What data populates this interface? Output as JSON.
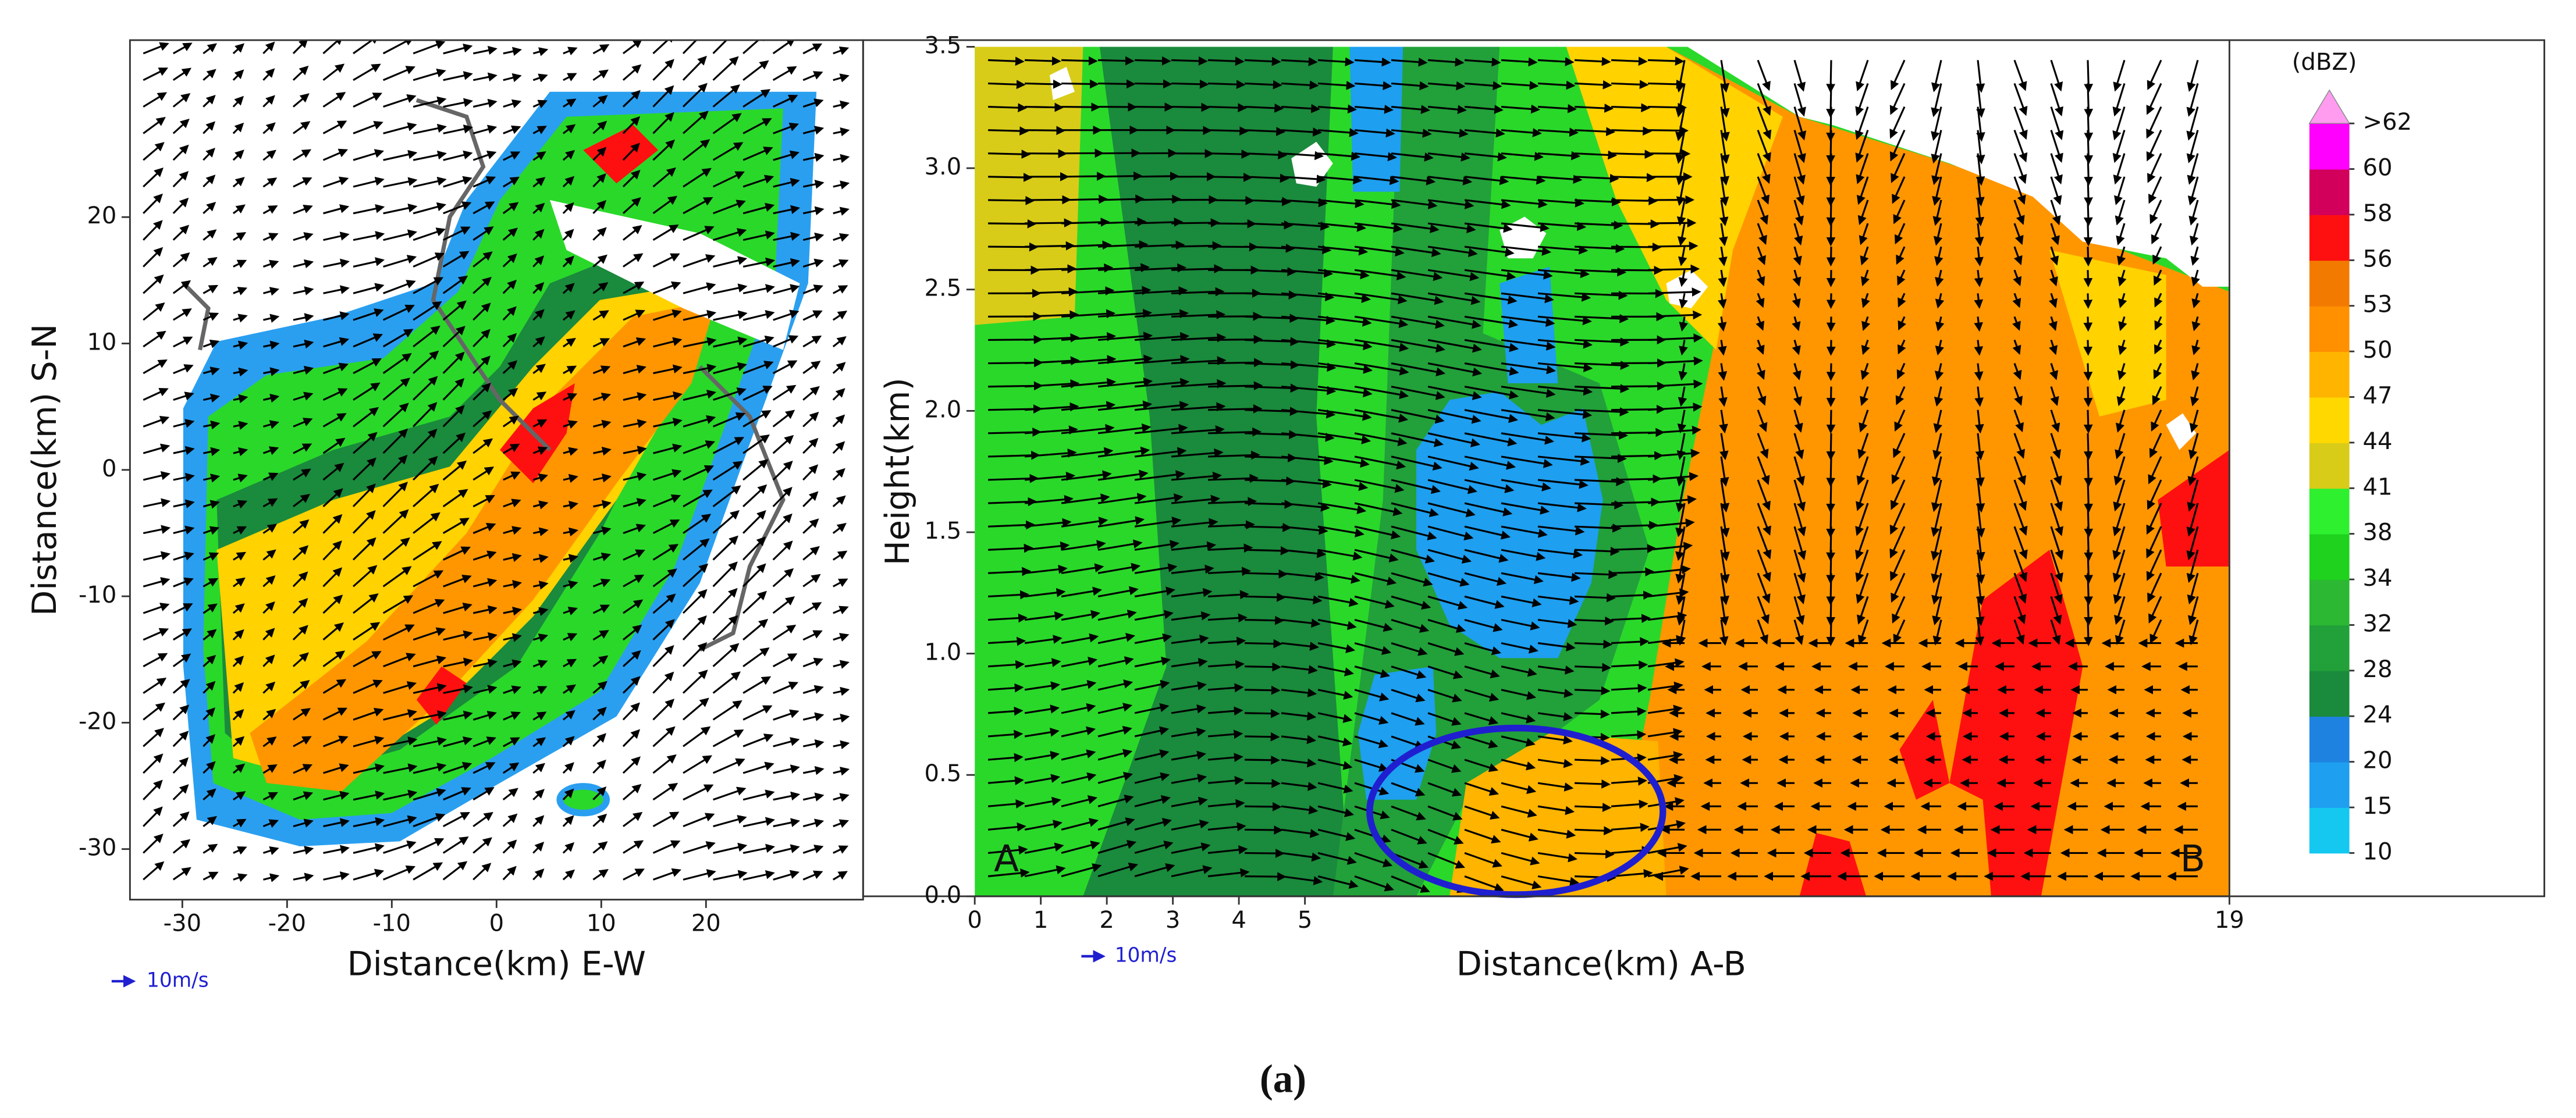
{
  "chart_data": [
    {
      "type": "contour",
      "xlabel": "Distance(km) E-W",
      "ylabel": "Distance(km) S-N",
      "xlim": [
        -35,
        35
      ],
      "ylim": [
        -34,
        34
      ],
      "xticks": [
        -30,
        -20,
        -10,
        0,
        10,
        20
      ],
      "yticks": [
        -30,
        -20,
        -10,
        0,
        10,
        20
      ],
      "vector_key": "10m/s"
    },
    {
      "type": "contour",
      "xlabel": "Distance(km) A-B",
      "ylabel": "Height(km)",
      "xlim": [
        0,
        19
      ],
      "ylim": [
        0,
        3.5
      ],
      "xticks": [
        0,
        1,
        2,
        3,
        4,
        5,
        19
      ],
      "yticks": [
        {
          "value": 0,
          "label": "0.0"
        },
        0.5,
        {
          "value": 1,
          "label": "1.0"
        },
        1.5,
        {
          "value": 2,
          "label": "2.0"
        },
        2.5,
        {
          "value": 3,
          "label": "3.0"
        },
        3.5
      ],
      "annotations": [
        "A",
        "B"
      ],
      "vector_key": "10m/s"
    },
    {
      "type": "colorbar",
      "title": "(dBZ)",
      "levels": [
        10,
        15,
        20,
        24,
        28,
        32,
        34,
        38,
        41,
        44,
        47,
        50,
        53,
        56,
        58,
        60,
        {
          "value": 62,
          "label": ">62"
        }
      ],
      "colors": [
        "#14c8f0",
        "#1e9ff0",
        "#1e82e0",
        "#1a8a3c",
        "#22a03a",
        "#2cb832",
        "#1ed21e",
        "#2ef02e",
        "#d8cc18",
        "#ffd800",
        "#ffb400",
        "#ff9000",
        "#f27a00",
        "#ff1010",
        "#d2005a",
        "#ff00ff"
      ],
      "extend_color": "#ff9cf0"
    }
  ],
  "caption": "(a)"
}
